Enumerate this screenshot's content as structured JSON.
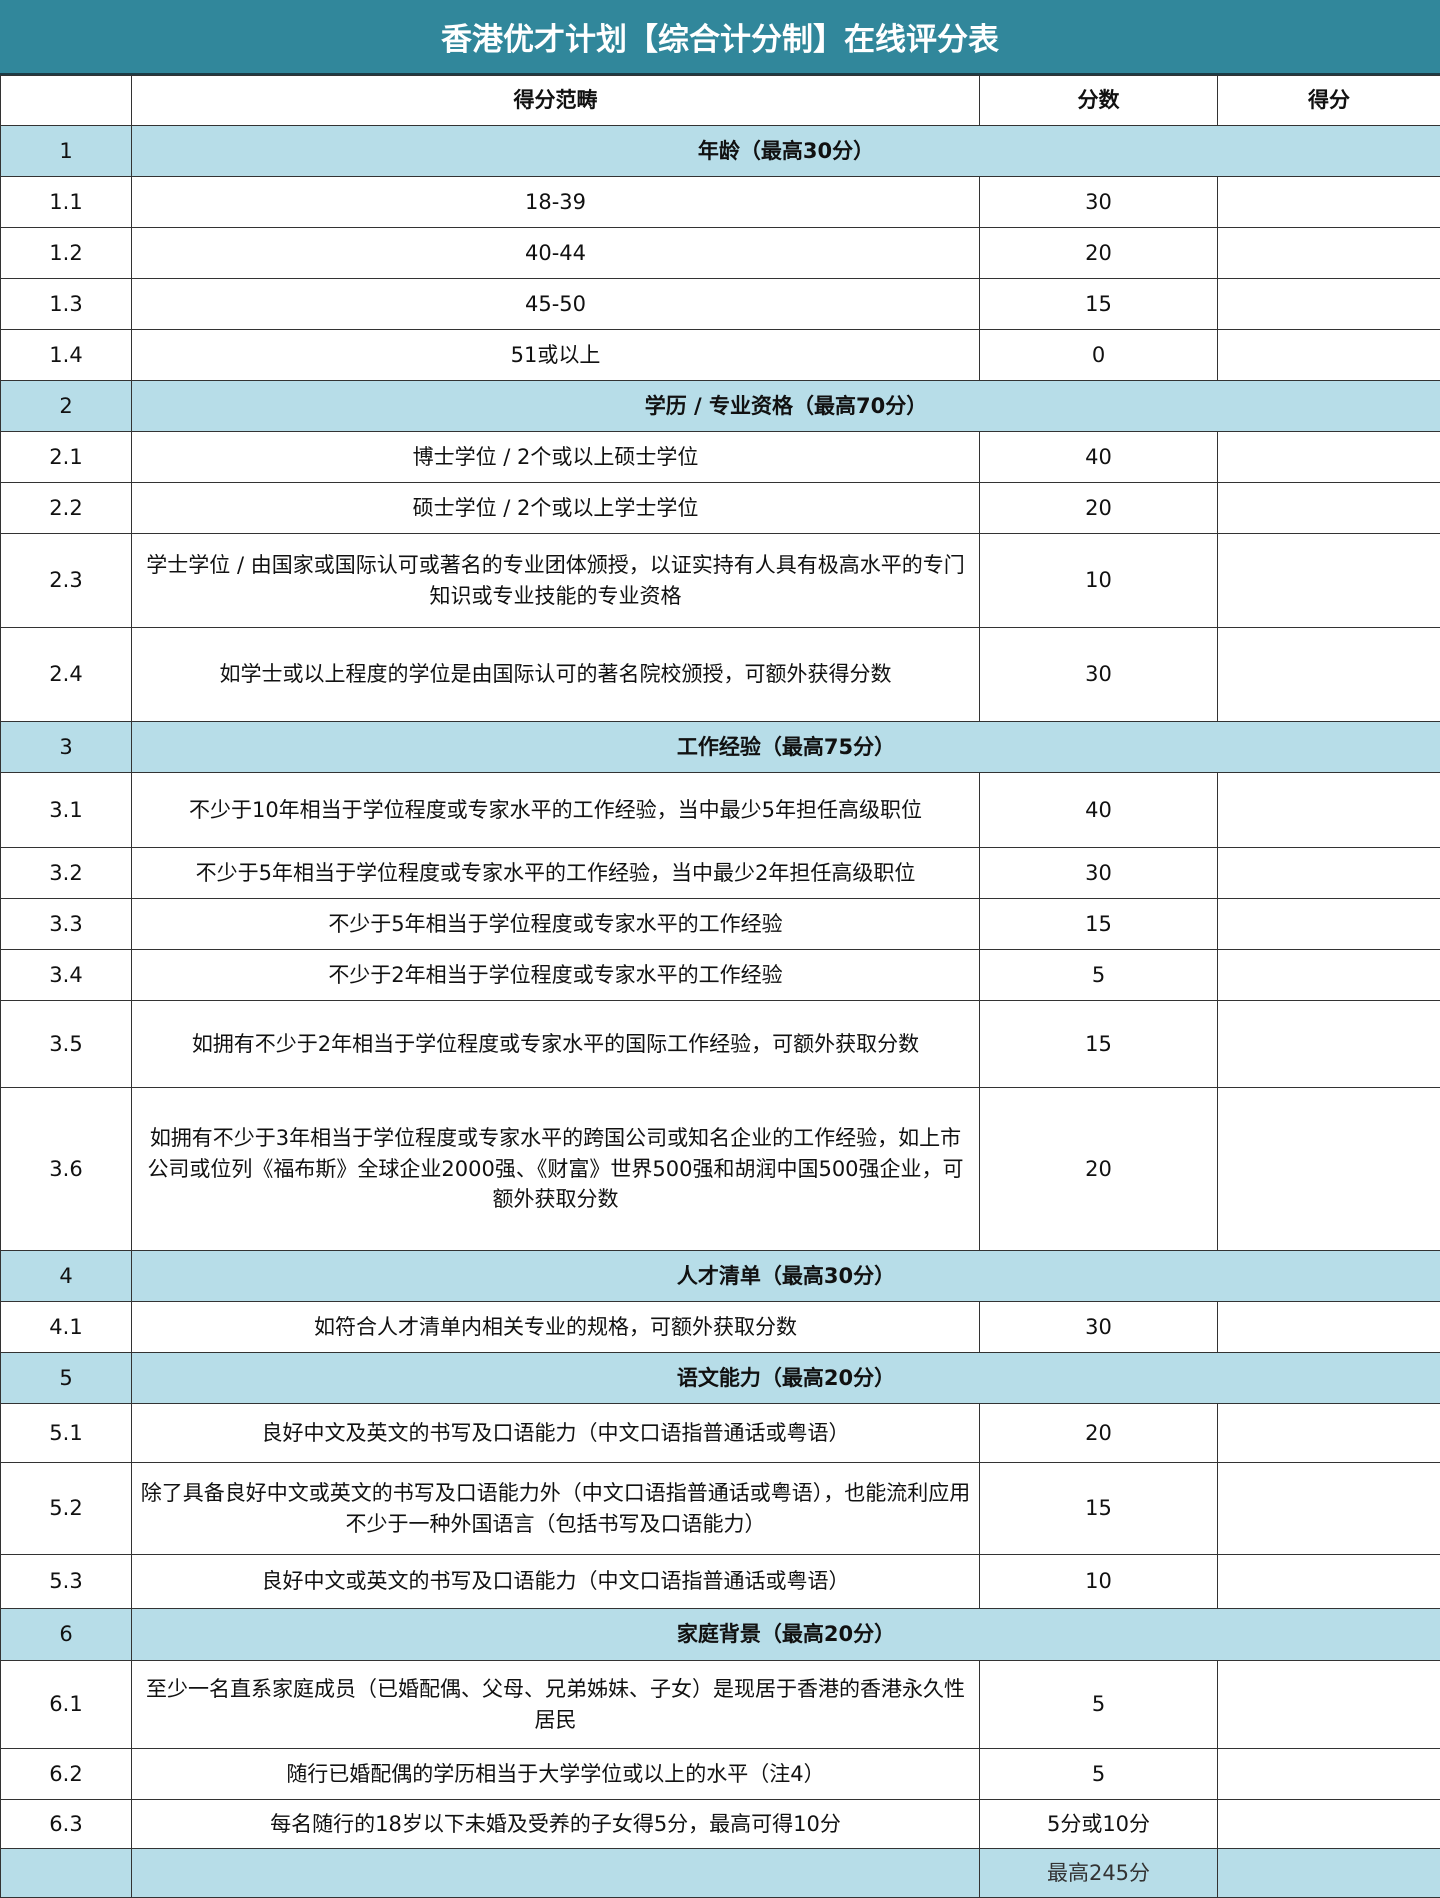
{
  "title": "香港优才计划【综合计分制】在线评分表",
  "header": {
    "no": "",
    "category": "得分范畴",
    "points": "分数",
    "score": "得分"
  },
  "rows": [
    {
      "type": "section",
      "no": "1",
      "category": "年龄（最高30分）",
      "points": ""
    },
    {
      "type": "item",
      "no": "1.1",
      "category": "18-39",
      "points": "30"
    },
    {
      "type": "item",
      "no": "1.2",
      "category": "40-44",
      "points": "20"
    },
    {
      "type": "item",
      "no": "1.3",
      "category": "45-50",
      "points": "15"
    },
    {
      "type": "item",
      "no": "1.4",
      "category": "51或以上",
      "points": "0"
    },
    {
      "type": "section",
      "no": "2",
      "category": "学历 / 专业资格（最高70分）",
      "points": ""
    },
    {
      "type": "item",
      "no": "2.1",
      "category": "博士学位 / 2个或以上硕士学位",
      "points": "40"
    },
    {
      "type": "item",
      "no": "2.2",
      "category": "硕士学位 / 2个或以上学士学位",
      "points": "20"
    },
    {
      "type": "item",
      "no": "2.3",
      "category": "学士学位 / 由国家或国际认可或著名的专业团体颁授，以证实持有人具有极高水平的专门知识或专业技能的专业资格",
      "points": "10"
    },
    {
      "type": "item",
      "no": "2.4",
      "category": "如学士或以上程度的学位是由国际认可的著名院校颁授，可额外获得分数",
      "points": "30"
    },
    {
      "type": "section",
      "no": "3",
      "category": "工作经验（最高75分）",
      "points": ""
    },
    {
      "type": "item",
      "no": "3.1",
      "category": "不少于10年相当于学位程度或专家水平的工作经验，当中最少5年担任高级职位",
      "points": "40"
    },
    {
      "type": "item",
      "no": "3.2",
      "category": "不少于5年相当于学位程度或专家水平的工作经验，当中最少2年担任高级职位",
      "points": "30"
    },
    {
      "type": "item",
      "no": "3.3",
      "category": "不少于5年相当于学位程度或专家水平的工作经验",
      "points": "15"
    },
    {
      "type": "item",
      "no": "3.4",
      "category": "不少于2年相当于学位程度或专家水平的工作经验",
      "points": "5"
    },
    {
      "type": "item",
      "no": "3.5",
      "category": "如拥有不少于2年相当于学位程度或专家水平的国际工作经验，可额外获取分数",
      "points": "15"
    },
    {
      "type": "item",
      "no": "3.6",
      "category": "如拥有不少于3年相当于学位程度或专家水平的跨国公司或知名企业的工作经验，如上市公司或位列《福布斯》全球企业2000强、《财富》世界500强和胡润中国500强企业，可额外获取分数",
      "points": "20"
    },
    {
      "type": "section",
      "no": "4",
      "category": "人才清单（最高30分）",
      "points": ""
    },
    {
      "type": "item",
      "no": "4.1",
      "category": "如符合人才清单内相关专业的规格，可额外获取分数",
      "points": "30"
    },
    {
      "type": "section",
      "no": "5",
      "category": "语文能力（最高20分）",
      "points": ""
    },
    {
      "type": "item",
      "no": "5.1",
      "category": "良好中文及英文的书写及口语能力（中文口语指普通话或粤语）",
      "points": "20"
    },
    {
      "type": "item",
      "no": "5.2",
      "category": "除了具备良好中文或英文的书写及口语能力外（中文口语指普通话或粤语），也能流利应用不少于一种外国语言（包括书写及口语能力）",
      "points": "15"
    },
    {
      "type": "item",
      "no": "5.3",
      "category": "良好中文或英文的书写及口语能力（中文口语指普通话或粤语）",
      "points": "10"
    },
    {
      "type": "section",
      "no": "6",
      "category": "家庭背景（最高20分）",
      "points": ""
    },
    {
      "type": "item",
      "no": "6.1",
      "category": "至少一名直系家庭成员（已婚配偶、父母、兄弟姊妹、子女）是现居于香港的香港永久性居民",
      "points": "5"
    },
    {
      "type": "item",
      "no": "6.2",
      "category": "随行已婚配偶的学历相当于大学学位或以上的水平（注4）",
      "points": "5"
    },
    {
      "type": "item",
      "no": "6.3",
      "category": "每名随行的18岁以下未婚及受养的子女得5分，最高可得10分",
      "points": "5分或10分"
    },
    {
      "type": "total",
      "no": "",
      "category": "",
      "points": "最高245分"
    }
  ]
}
